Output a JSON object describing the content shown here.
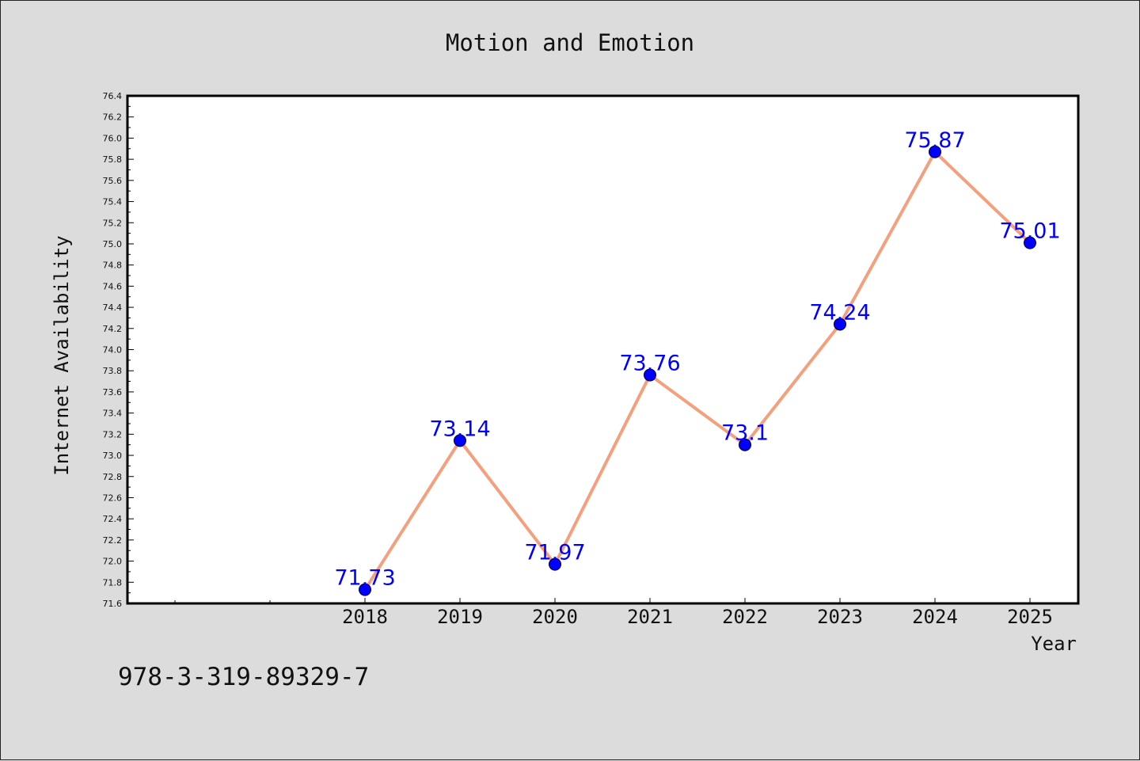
{
  "chart_data": {
    "type": "line",
    "title": "Motion and Emotion",
    "xlabel": "Year",
    "ylabel": "Internet Availability",
    "categories": [
      "2018",
      "2019",
      "2020",
      "2021",
      "2022",
      "2023",
      "2024",
      "2025"
    ],
    "series": [
      {
        "values": [
          71.73,
          73.14,
          71.97,
          73.76,
          73.1,
          74.24,
          75.87,
          75.01
        ],
        "labels": [
          "71.73",
          "73.14",
          "71.97",
          "73.76",
          "73.1",
          "74.24",
          "75.87",
          "75.01"
        ]
      }
    ],
    "ylim": [
      71.6,
      76.4
    ],
    "y_ticks": [
      "71.6",
      "71.8",
      "72.0",
      "72.2",
      "72.4",
      "72.6",
      "72.8",
      "73.0",
      "73.2",
      "73.4",
      "73.6",
      "73.8",
      "74.0",
      "74.2",
      "74.4",
      "74.6",
      "74.8",
      "75.0",
      "75.2",
      "75.4",
      "75.6",
      "75.8",
      "76.0",
      "76.2",
      "76.4"
    ],
    "grid": false,
    "legend": "none",
    "line_color": "#f4a07e",
    "marker_color": "#0000ff",
    "label_color": "#0000ff"
  },
  "footer_text": "978-3-319-89329-7"
}
